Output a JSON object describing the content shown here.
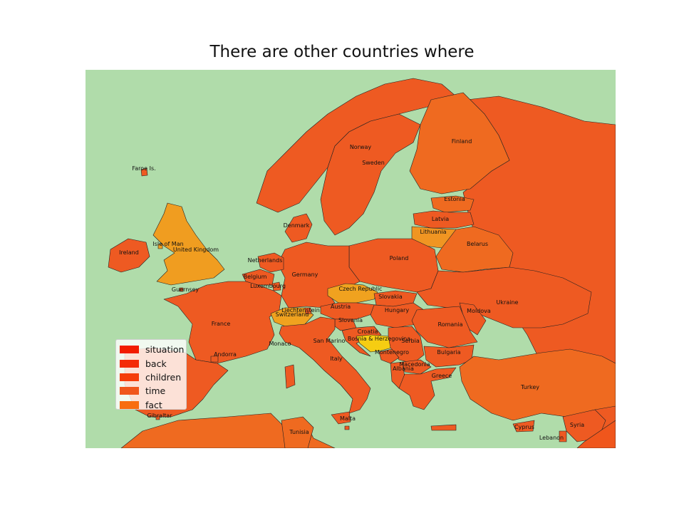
{
  "title": "There are other countries where",
  "colors": {
    "sea": "#b0dcaa",
    "border": "#222222",
    "base": "#ef5a20"
  },
  "legend": {
    "items": [
      {
        "label": "situation",
        "color": "#f21b00"
      },
      {
        "label": "back",
        "color": "#f42a06"
      },
      {
        "label": "children",
        "color": "#f53d0a"
      },
      {
        "label": "time",
        "color": "#f0561c"
      },
      {
        "label": "fact",
        "color": "#f86d10"
      }
    ]
  },
  "countries": [
    {
      "name": "Norway",
      "color": "#ee5a22"
    },
    {
      "name": "Sweden",
      "color": "#ee5a22"
    },
    {
      "name": "Finland",
      "color": "#ef6a20"
    },
    {
      "name": "Faroe Is.",
      "color": "#ee5a22"
    },
    {
      "name": "Estonia",
      "color": "#ef6a20"
    },
    {
      "name": "Latvia",
      "color": "#ee5a22"
    },
    {
      "name": "Lithuania",
      "color": "#f09522"
    },
    {
      "name": "Belarus",
      "color": "#ef6a20"
    },
    {
      "name": "Denmark",
      "color": "#ee5a22"
    },
    {
      "name": "Isle of Man",
      "color": "#f09d20"
    },
    {
      "name": "United Kingdom",
      "color": "#f09d20"
    },
    {
      "name": "Ireland",
      "color": "#ee5a22"
    },
    {
      "name": "Netherlands",
      "color": "#ee5a22"
    },
    {
      "name": "Belgium",
      "color": "#ee5a22"
    },
    {
      "name": "Luxembourg",
      "color": "#ee5a22"
    },
    {
      "name": "Germany",
      "color": "#ee5a22"
    },
    {
      "name": "Poland",
      "color": "#ee5a22"
    },
    {
      "name": "Czech Republic",
      "color": "#f0a21f"
    },
    {
      "name": "Slovakia",
      "color": "#ee5a22"
    },
    {
      "name": "Ukraine",
      "color": "#ee5a22"
    },
    {
      "name": "Guernsey",
      "color": "#ee5a22"
    },
    {
      "name": "Liechtenstein",
      "color": "#ee5a22"
    },
    {
      "name": "Austria",
      "color": "#ee5a22"
    },
    {
      "name": "Hungary",
      "color": "#ee5a22"
    },
    {
      "name": "Moldova",
      "color": "#ee5a22"
    },
    {
      "name": "Switzerland",
      "color": "#f0a21f"
    },
    {
      "name": "France",
      "color": "#ee5a22"
    },
    {
      "name": "Slovenia",
      "color": "#ee5a22"
    },
    {
      "name": "Romania",
      "color": "#ee5a22"
    },
    {
      "name": "Croatia",
      "color": "#ee5a22"
    },
    {
      "name": "Bosnia & Herzegovina",
      "color": "#f6cd12"
    },
    {
      "name": "Serbia",
      "color": "#ee5a22"
    },
    {
      "name": "Monaco",
      "color": "#ee5a22"
    },
    {
      "name": "San Marino",
      "color": "#ee5a22"
    },
    {
      "name": "Montenegro",
      "color": "#ee5a22"
    },
    {
      "name": "Bulgaria",
      "color": "#ee5a22"
    },
    {
      "name": "Andorra",
      "color": "#ee5a22"
    },
    {
      "name": "Italy",
      "color": "#ee5a22"
    },
    {
      "name": "Macedonia",
      "color": "#ee5a22"
    },
    {
      "name": "Albania",
      "color": "#ee5a22"
    },
    {
      "name": "Greece",
      "color": "#ee5a22"
    },
    {
      "name": "Turkey",
      "color": "#ef6a20"
    },
    {
      "name": "Gibraltar",
      "color": "#ee5a22"
    },
    {
      "name": "Malta",
      "color": "#ee5a22"
    },
    {
      "name": "Tunisia",
      "color": "#ef6a20"
    },
    {
      "name": "Cyprus",
      "color": "#ee5a22"
    },
    {
      "name": "Syria",
      "color": "#ee5a22"
    },
    {
      "name": "Lebanon",
      "color": "#ee5a22"
    }
  ]
}
